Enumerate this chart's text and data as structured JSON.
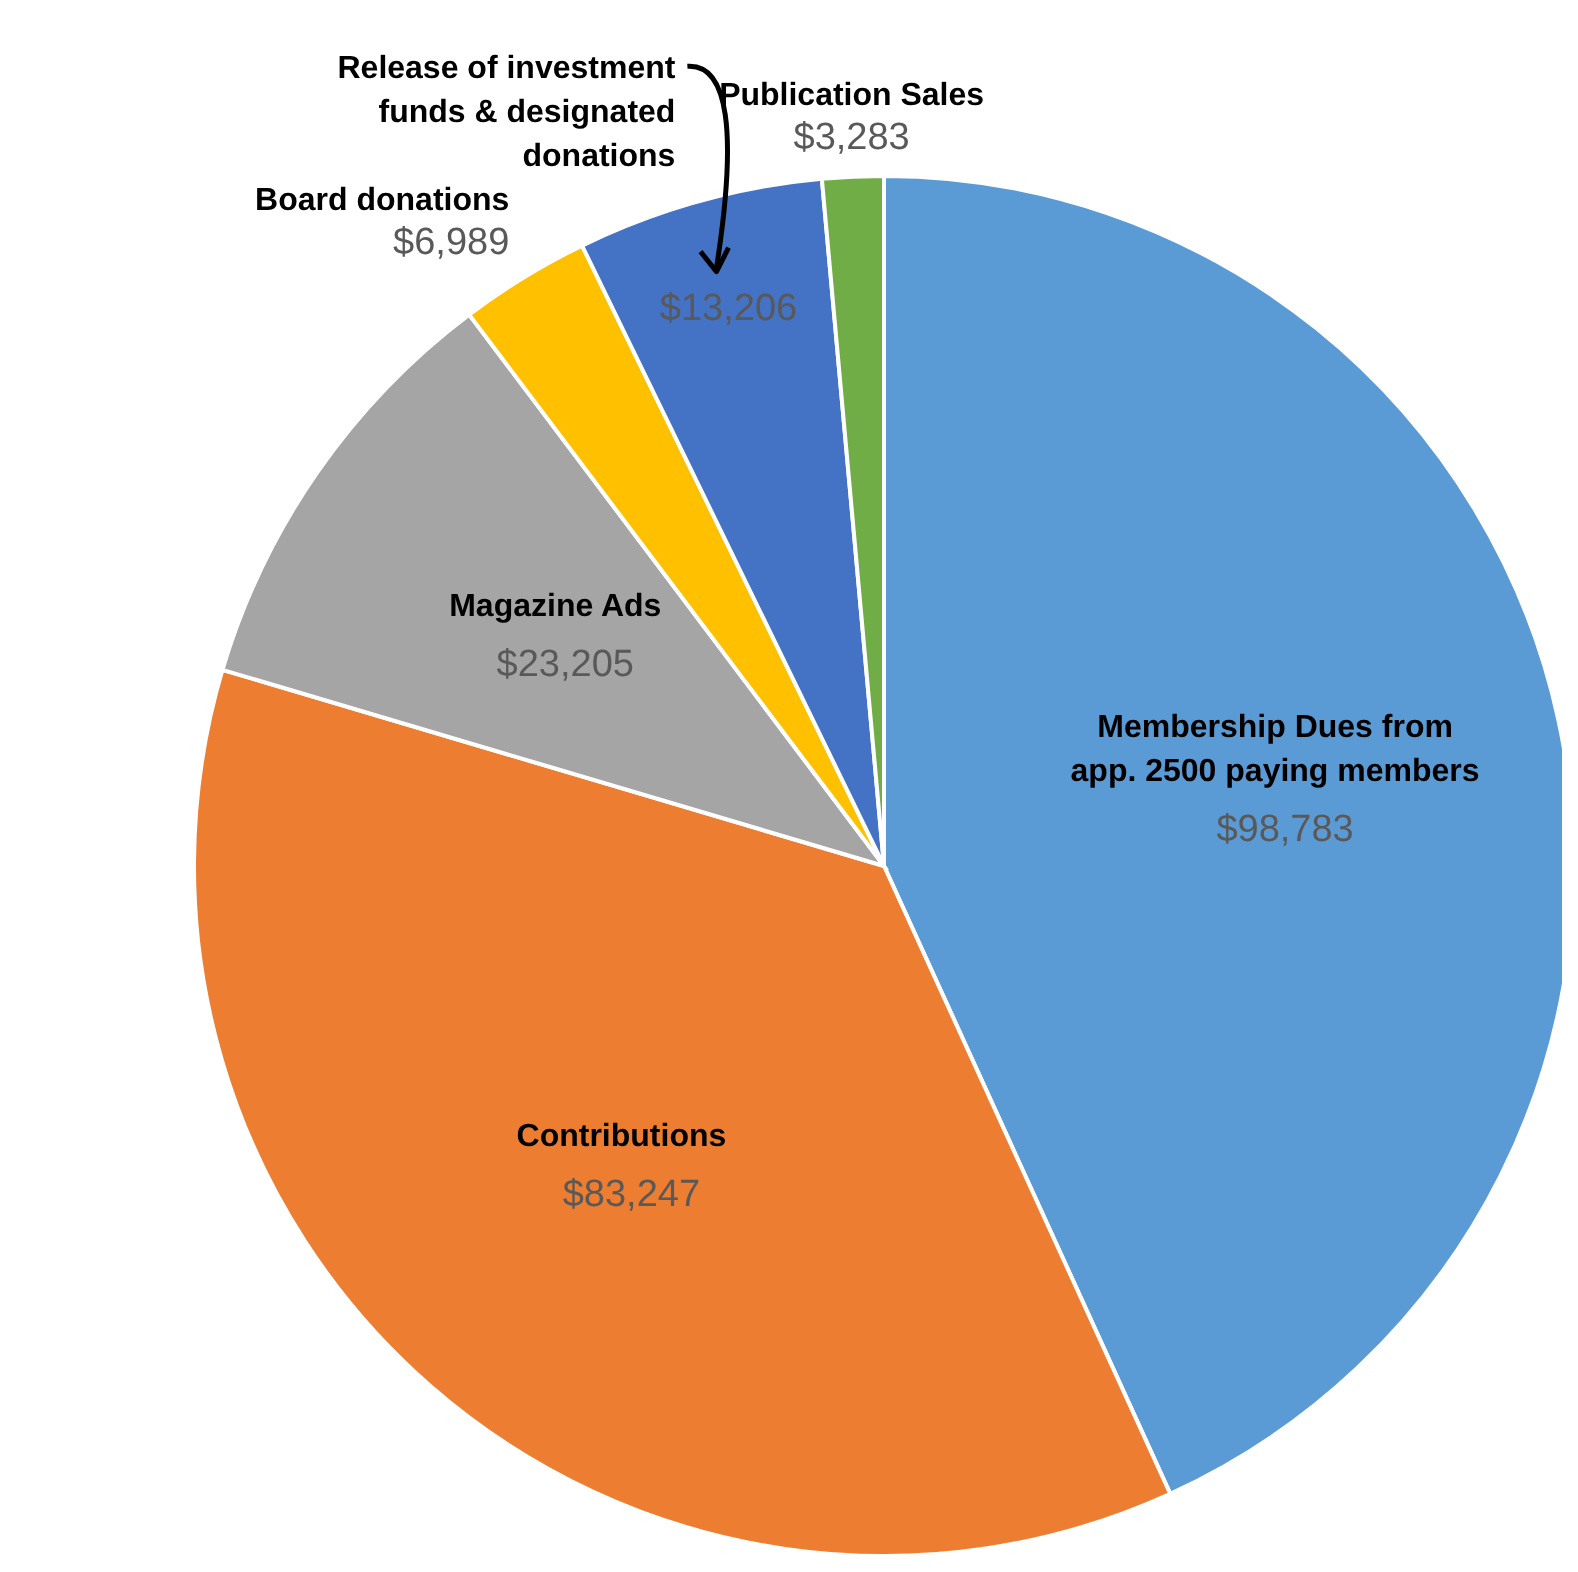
{
  "chart_data": {
    "type": "pie",
    "categories": [
      "Membership Dues from app. 2500 paying members",
      "Contributions",
      "Magazine Ads",
      "Board donations",
      "Release of investment funds & designated donations",
      "Publication Sales"
    ],
    "values": [
      98783,
      83247,
      23205,
      6989,
      13206,
      3283
    ],
    "value_labels": [
      "$98,783",
      "$83,247",
      "$23,205",
      "$6,989",
      "$13,206",
      "$3,283"
    ],
    "colors": [
      "#5b9bd5",
      "#ed7d31",
      "#a5a5a5",
      "#ffc000",
      "#4472c4",
      "#70ad47"
    ]
  }
}
